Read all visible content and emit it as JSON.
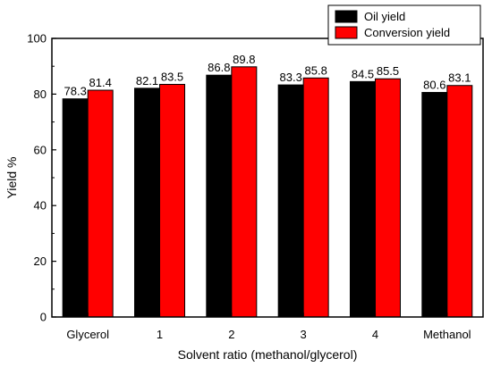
{
  "chart_data": {
    "type": "bar",
    "categories": [
      "Glycerol",
      "1",
      "2",
      "3",
      "4",
      "Methanol"
    ],
    "series": [
      {
        "name": "Oil yield",
        "values": [
          78.3,
          82.1,
          86.8,
          83.3,
          84.5,
          80.6
        ],
        "color": "#000000"
      },
      {
        "name": "Conversion yield",
        "values": [
          81.4,
          83.5,
          89.8,
          85.8,
          85.5,
          83.1
        ],
        "color": "#ff0000"
      }
    ],
    "data_labels": [
      [
        "78.3",
        "82.1",
        "86.8",
        "83.3",
        "84.5",
        "80.6"
      ],
      [
        "81.4",
        "83.5",
        "89.8",
        "85.8",
        "85.5",
        "83.1"
      ]
    ],
    "xlabel": "Solvent ratio (methanol/glycerol)",
    "ylabel": "Yield %",
    "ylim": [
      0,
      100
    ],
    "yticks": [
      0,
      20,
      40,
      60,
      80,
      100
    ],
    "ytick_labels": [
      "0",
      "20",
      "40",
      "60",
      "80",
      "100"
    ],
    "grid": false,
    "legend_position": "top-right"
  }
}
